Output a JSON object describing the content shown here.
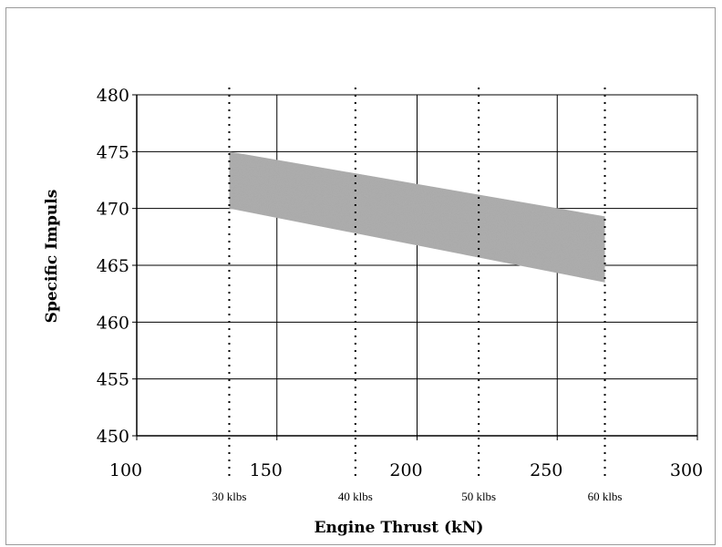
{
  "chart_data": {
    "type": "area",
    "title": "",
    "xlabel": "Engine Thrust (kN)",
    "ylabel": "Specific Impuls",
    "xlim": [
      100,
      300
    ],
    "ylim": [
      450,
      480
    ],
    "x_ticks": [
      100,
      150,
      200,
      250,
      300
    ],
    "y_ticks": [
      450,
      455,
      460,
      465,
      470,
      475,
      480
    ],
    "grid": true,
    "legend": "none",
    "band": {
      "x": [
        133,
        267
      ],
      "upper": [
        475.0,
        469.3
      ],
      "lower": [
        470.0,
        463.5
      ],
      "color": "#a9a9a9"
    },
    "reference_lines": [
      {
        "x": 133,
        "label": "30 klbs"
      },
      {
        "x": 178,
        "label": "40 klbs"
      },
      {
        "x": 222,
        "label": "50 klbs"
      },
      {
        "x": 267,
        "label": "60 klbs"
      }
    ]
  }
}
